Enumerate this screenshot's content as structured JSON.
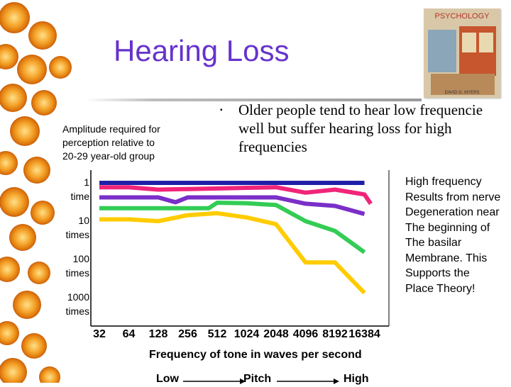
{
  "slide": {
    "title": "Hearing Loss",
    "book_cover_title": "PSYCHOLOGY",
    "book_cover_author": "DAVID G. MYERS",
    "bullet_lines": [
      "Older people tend to hear low frequencie",
      "well but suffer hearing loss for high",
      "frequencies"
    ],
    "amplitude_label_lines": [
      "Amplitude required for",
      "perception relative to",
      "20-29 year-old group"
    ],
    "side_text_lines": [
      "High frequency",
      "Results from nerve",
      "Degeneration near",
      "The beginning of",
      "The basilar",
      "Membrane. This",
      "Supports the",
      "Place Theory!"
    ],
    "pitch_axis": {
      "low": "Low",
      "middle": "Pitch",
      "high": "High"
    }
  },
  "colors": {
    "title": "#6633cc",
    "series_blue": "#1f1fa8",
    "series_pink": "#f0257a",
    "series_purple": "#7a2fc8",
    "series_green": "#33cc55",
    "series_yellow": "#ffcc00"
  },
  "chart_data": {
    "type": "line",
    "xlabel": "Frequency of tone in waves per second",
    "ylabel_lines": [
      "Amplitude required for",
      "perception relative to",
      "20-29 year-old group"
    ],
    "x_ticks": [
      "32",
      "64",
      "128",
      "256",
      "512",
      "1024",
      "2048",
      "4096",
      "8192",
      "16384"
    ],
    "y_ticks": [
      {
        "value": 1,
        "label_lines": [
          "1",
          "time"
        ]
      },
      {
        "value": 10,
        "label_lines": [
          "10",
          "times"
        ]
      },
      {
        "value": 100,
        "label_lines": [
          "100",
          "times"
        ]
      },
      {
        "value": 1000,
        "label_lines": [
          "1000",
          "times"
        ]
      }
    ],
    "y_scale": "log",
    "y_direction": "down",
    "series": [
      {
        "color": "#1f1fa8",
        "points": [
          [
            32,
            1
          ],
          [
            64,
            1
          ],
          [
            128,
            1
          ],
          [
            256,
            1
          ],
          [
            512,
            1
          ],
          [
            1024,
            1
          ],
          [
            2048,
            1
          ],
          [
            4096,
            1
          ],
          [
            8192,
            1
          ],
          [
            16384,
            1
          ]
        ]
      },
      {
        "color": "#f0257a",
        "points": [
          [
            32,
            1.3
          ],
          [
            64,
            1.3
          ],
          [
            128,
            1.5
          ],
          [
            256,
            1.45
          ],
          [
            512,
            1.4
          ],
          [
            1024,
            1.35
          ],
          [
            2048,
            1.3
          ],
          [
            4096,
            1.8
          ],
          [
            8192,
            1.5
          ],
          [
            16384,
            2
          ],
          [
            19000,
            3.5
          ]
        ]
      },
      {
        "color": "#7a2fc8",
        "points": [
          [
            32,
            2.4
          ],
          [
            64,
            2.4
          ],
          [
            128,
            2.4
          ],
          [
            192,
            3.2
          ],
          [
            256,
            2.4
          ],
          [
            512,
            2.4
          ],
          [
            1024,
            2.4
          ],
          [
            2048,
            2.4
          ],
          [
            4096,
            3.5
          ],
          [
            8192,
            4
          ],
          [
            16384,
            6.5
          ]
        ]
      },
      {
        "color": "#33cc55",
        "points": [
          [
            32,
            4.6
          ],
          [
            64,
            4.6
          ],
          [
            128,
            4.6
          ],
          [
            256,
            4.6
          ],
          [
            420,
            4.6
          ],
          [
            512,
            3.3
          ],
          [
            1024,
            3.4
          ],
          [
            2048,
            3.8
          ],
          [
            4096,
            10
          ],
          [
            8192,
            18
          ],
          [
            16384,
            65
          ]
        ]
      },
      {
        "color": "#ffcc00",
        "points": [
          [
            32,
            9
          ],
          [
            64,
            9
          ],
          [
            128,
            10
          ],
          [
            256,
            7
          ],
          [
            512,
            6.2
          ],
          [
            1024,
            8
          ],
          [
            2048,
            12
          ],
          [
            4096,
            120
          ],
          [
            8192,
            120
          ],
          [
            16384,
            750
          ]
        ]
      }
    ]
  }
}
